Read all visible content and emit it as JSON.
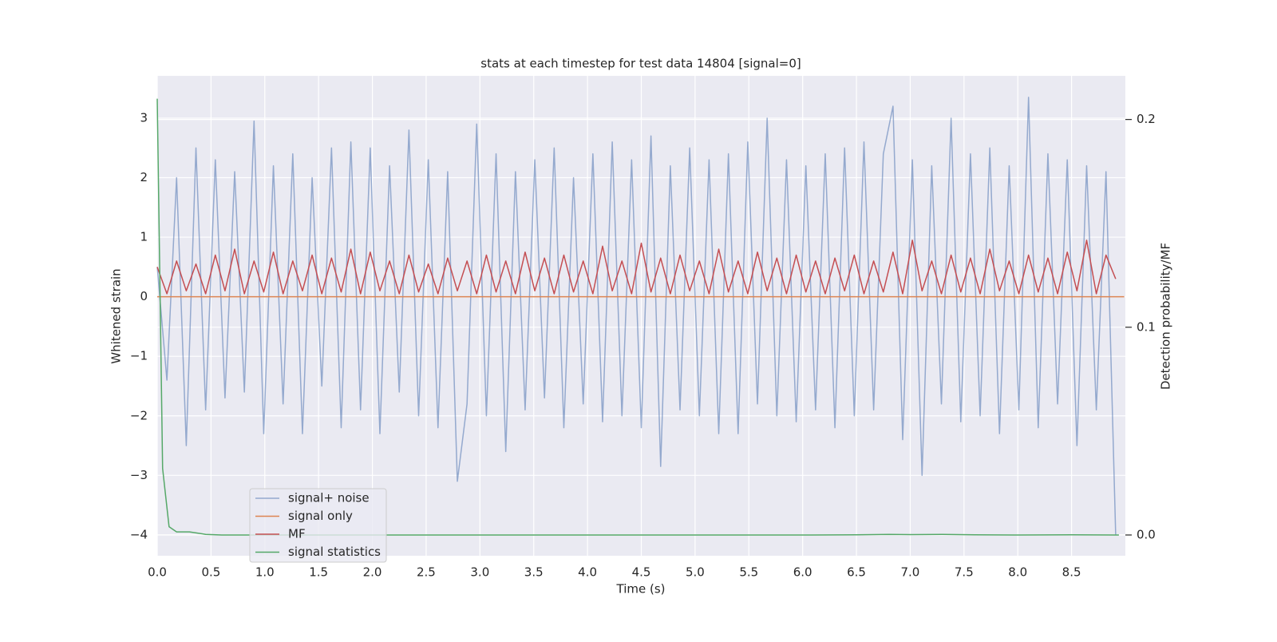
{
  "chart_data": {
    "type": "line",
    "title": "stats at each timestep for test data 14804 [signal=0]",
    "xlabel": "Time (s)",
    "ylabel": "Whitened strain",
    "y2label": "Detection probability/MF",
    "xlim": [
      0,
      9
    ],
    "ylim": [
      -4.35,
      3.71
    ],
    "y2lim": [
      -0.01,
      0.221
    ],
    "xticks": [
      {
        "value": 0,
        "label": "0.0"
      },
      0.5,
      {
        "value": 1,
        "label": "1.0"
      },
      1.5,
      {
        "value": 2,
        "label": "2.0"
      },
      2.5,
      {
        "value": 3,
        "label": "3.0"
      },
      3.5,
      {
        "value": 4,
        "label": "4.0"
      },
      4.5,
      {
        "value": 5,
        "label": "5.0"
      },
      5.5,
      {
        "value": 6,
        "label": "6.0"
      },
      6.5,
      {
        "value": 7,
        "label": "7.0"
      },
      7.5,
      {
        "value": 8,
        "label": "8.0"
      },
      8.5
    ],
    "yticks": [
      {
        "value": -4,
        "label": "−4"
      },
      {
        "value": -3,
        "label": "−3"
      },
      {
        "value": -2,
        "label": "−2"
      },
      {
        "value": -1,
        "label": "−1"
      },
      0,
      1,
      2,
      3
    ],
    "y2ticks": [
      {
        "value": 0,
        "label": "0.0"
      },
      0.1,
      0.2
    ],
    "grid": true,
    "legend": "lower left",
    "background": "#eaeaf2",
    "series": [
      {
        "name": "signal+ noise",
        "color": "#4c72b0",
        "opacity": 0.55,
        "x": [
          0,
          0.09,
          0.18,
          0.27,
          0.36,
          0.45,
          0.54,
          0.63,
          0.72,
          0.81,
          0.9,
          0.99,
          1.08,
          1.17,
          1.26,
          1.35,
          1.44,
          1.53,
          1.62,
          1.71,
          1.8,
          1.89,
          1.98,
          2.07,
          2.16,
          2.25,
          2.34,
          2.43,
          2.52,
          2.61,
          2.7,
          2.79,
          2.88,
          2.97,
          3.06,
          3.15,
          3.24,
          3.33,
          3.42,
          3.51,
          3.6,
          3.69,
          3.78,
          3.87,
          3.96,
          4.05,
          4.14,
          4.23,
          4.32,
          4.41,
          4.5,
          4.59,
          4.68,
          4.77,
          4.86,
          4.95,
          5.04,
          5.13,
          5.22,
          5.31,
          5.4,
          5.49,
          5.58,
          5.67,
          5.76,
          5.85,
          5.94,
          6.03,
          6.12,
          6.21,
          6.3,
          6.39,
          6.48,
          6.57,
          6.66,
          6.75,
          6.84,
          6.93,
          7.02,
          7.11,
          7.2,
          7.29,
          7.38,
          7.47,
          7.56,
          7.65,
          7.74,
          7.83,
          7.92,
          8.01,
          8.1,
          8.19,
          8.28,
          8.37,
          8.46,
          8.55,
          8.64,
          8.73,
          8.82,
          8.91
        ],
        "values": [
          0.5,
          -1.4,
          2.0,
          -2.5,
          2.5,
          -1.9,
          2.3,
          -1.7,
          2.1,
          -1.6,
          2.95,
          -2.3,
          2.2,
          -1.8,
          2.4,
          -2.3,
          2.0,
          -1.5,
          2.5,
          -2.2,
          2.6,
          -1.9,
          2.5,
          -2.3,
          2.2,
          -1.6,
          2.8,
          -2.0,
          2.3,
          -2.2,
          2.1,
          -3.1,
          -1.8,
          2.9,
          -2.0,
          2.4,
          -2.6,
          2.1,
          -1.9,
          2.3,
          -1.7,
          2.5,
          -2.2,
          2.0,
          -1.8,
          2.4,
          -2.1,
          2.6,
          -2.0,
          2.3,
          -2.2,
          2.7,
          -2.85,
          2.2,
          -1.9,
          2.5,
          -2.0,
          2.3,
          -2.3,
          2.4,
          -2.3,
          2.6,
          -1.8,
          3.0,
          -2.0,
          2.3,
          -2.1,
          2.2,
          -1.9,
          2.4,
          -2.2,
          2.5,
          -2.0,
          2.6,
          -1.9,
          2.4,
          3.2,
          -2.4,
          2.3,
          -3.0,
          2.2,
          -1.8,
          3.0,
          -2.1,
          2.4,
          -2.0,
          2.5,
          -2.3,
          2.2,
          -1.9,
          3.35,
          -2.2,
          2.4,
          -1.8,
          2.3,
          -2.5,
          2.2,
          -1.9,
          2.1,
          -4.0
        ]
      },
      {
        "name": "signal only",
        "color": "#dd8452",
        "x": [
          0,
          8.99
        ],
        "values": [
          0,
          0
        ]
      },
      {
        "name": "MF",
        "color": "#c44e52",
        "x": [
          0,
          0.09,
          0.18,
          0.27,
          0.36,
          0.45,
          0.54,
          0.63,
          0.72,
          0.81,
          0.9,
          0.99,
          1.08,
          1.17,
          1.26,
          1.35,
          1.44,
          1.53,
          1.62,
          1.71,
          1.8,
          1.89,
          1.98,
          2.07,
          2.16,
          2.25,
          2.34,
          2.43,
          2.52,
          2.61,
          2.7,
          2.79,
          2.88,
          2.97,
          3.06,
          3.15,
          3.24,
          3.33,
          3.42,
          3.51,
          3.6,
          3.69,
          3.78,
          3.87,
          3.96,
          4.05,
          4.14,
          4.23,
          4.32,
          4.41,
          4.5,
          4.59,
          4.68,
          4.77,
          4.86,
          4.95,
          5.04,
          5.13,
          5.22,
          5.31,
          5.4,
          5.49,
          5.58,
          5.67,
          5.76,
          5.85,
          5.94,
          6.03,
          6.12,
          6.21,
          6.3,
          6.39,
          6.48,
          6.57,
          6.66,
          6.75,
          6.84,
          6.93,
          7.02,
          7.11,
          7.2,
          7.29,
          7.38,
          7.47,
          7.56,
          7.65,
          7.74,
          7.83,
          7.92,
          8.01,
          8.1,
          8.19,
          8.28,
          8.37,
          8.46,
          8.55,
          8.64,
          8.73,
          8.82,
          8.91
        ],
        "values": [
          0.5,
          0.05,
          0.6,
          0.1,
          0.55,
          0.05,
          0.7,
          0.1,
          0.8,
          0.05,
          0.6,
          0.08,
          0.75,
          0.05,
          0.6,
          0.1,
          0.7,
          0.05,
          0.65,
          0.08,
          0.8,
          0.05,
          0.75,
          0.1,
          0.6,
          0.05,
          0.7,
          0.08,
          0.55,
          0.05,
          0.65,
          0.1,
          0.6,
          0.05,
          0.7,
          0.08,
          0.6,
          0.05,
          0.75,
          0.1,
          0.65,
          0.05,
          0.7,
          0.08,
          0.6,
          0.05,
          0.85,
          0.1,
          0.6,
          0.05,
          0.9,
          0.08,
          0.65,
          0.05,
          0.7,
          0.1,
          0.6,
          0.05,
          0.8,
          0.08,
          0.6,
          0.05,
          0.75,
          0.1,
          0.65,
          0.05,
          0.7,
          0.08,
          0.6,
          0.05,
          0.65,
          0.1,
          0.7,
          0.05,
          0.6,
          0.08,
          0.75,
          0.05,
          0.95,
          0.1,
          0.6,
          0.05,
          0.7,
          0.08,
          0.65,
          0.05,
          0.8,
          0.1,
          0.6,
          0.05,
          0.7,
          0.08,
          0.65,
          0.05,
          0.75,
          0.1,
          0.95,
          0.05,
          0.7,
          0.3
        ]
      },
      {
        "name": "signal statistics",
        "color": "#55a868",
        "axis": "y2",
        "x": [
          0,
          0.05,
          0.11,
          0.18,
          0.3,
          0.45,
          0.6,
          1,
          2,
          3,
          4,
          5,
          6,
          6.5,
          6.8,
          7,
          7.3,
          7.6,
          8,
          8.5,
          8.94
        ],
        "values": [
          0.21,
          0.032,
          0.004,
          0.0015,
          0.0015,
          0.0003,
          0,
          0,
          0,
          0,
          0,
          0,
          0,
          0.0001,
          0.0003,
          0.0002,
          0.0003,
          0.0001,
          0,
          0.0001,
          0
        ]
      }
    ]
  }
}
